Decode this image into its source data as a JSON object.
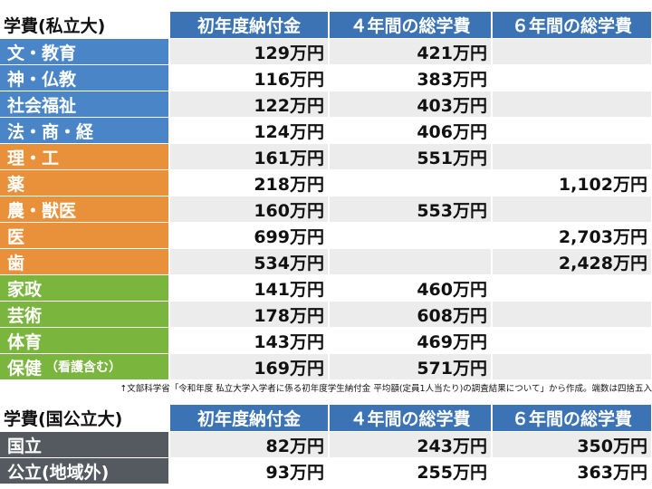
{
  "private_table": {
    "title": "学費(私立大)",
    "headers": [
      "初年度納付金",
      "４年間の総学費",
      "６年間の総学費"
    ],
    "rows": [
      {
        "label": "文・教育",
        "group": "blue",
        "v1": "129万円",
        "v2": "421万円",
        "v3": ""
      },
      {
        "label": "神・仏教",
        "group": "blue",
        "v1": "116万円",
        "v2": "383万円",
        "v3": ""
      },
      {
        "label": "社会福祉",
        "group": "blue",
        "v1": "122万円",
        "v2": "403万円",
        "v3": ""
      },
      {
        "label": "法・商・経",
        "group": "blue",
        "v1": "124万円",
        "v2": "406万円",
        "v3": ""
      },
      {
        "label": "理・工",
        "group": "orange",
        "v1": "161万円",
        "v2": "551万円",
        "v3": ""
      },
      {
        "label": "薬",
        "group": "orange",
        "v1": "218万円",
        "v2": "",
        "v3": "1,102万円"
      },
      {
        "label": "農・獣医",
        "group": "orange",
        "v1": "160万円",
        "v2": "553万円",
        "v3": ""
      },
      {
        "label": "医",
        "group": "orange",
        "v1": "699万円",
        "v2": "",
        "v3": "2,703万円"
      },
      {
        "label": "歯",
        "group": "orange",
        "v1": "534万円",
        "v2": "",
        "v3": "2,428万円"
      },
      {
        "label": "家政",
        "group": "green",
        "v1": "141万円",
        "v2": "460万円",
        "v3": ""
      },
      {
        "label": "芸術",
        "group": "green",
        "v1": "178万円",
        "v2": "608万円",
        "v3": ""
      },
      {
        "label": "体育",
        "group": "green",
        "v1": "143万円",
        "v2": "469万円",
        "v3": ""
      },
      {
        "label": "保健",
        "label_small": "（看護含む）",
        "group": "green",
        "v1": "169万円",
        "v2": "571万円",
        "v3": ""
      }
    ]
  },
  "source_note": "↑文部科学省「令和年度 私立大学入学者に係る初年度学生納付金 平均額(定員1人当たり)の調査結果について」から作成。端数は四捨五入",
  "public_table": {
    "title": "学費(国公立大)",
    "headers": [
      "初年度納付金",
      "４年間の総学費",
      "６年間の総学費"
    ],
    "rows": [
      {
        "label": "国立",
        "group": "gray",
        "v1": "82万円",
        "v2": "243万円",
        "v3": "350万円"
      },
      {
        "label": "公立(地域外)",
        "group": "gray",
        "v1": "93万円",
        "v2": "255万円",
        "v3": "363万円"
      }
    ]
  },
  "colors": {
    "header": "#3b73b5",
    "blue": "#4a86c7",
    "orange": "#e8913a",
    "green": "#7ab53e",
    "gray": "#555a60"
  }
}
